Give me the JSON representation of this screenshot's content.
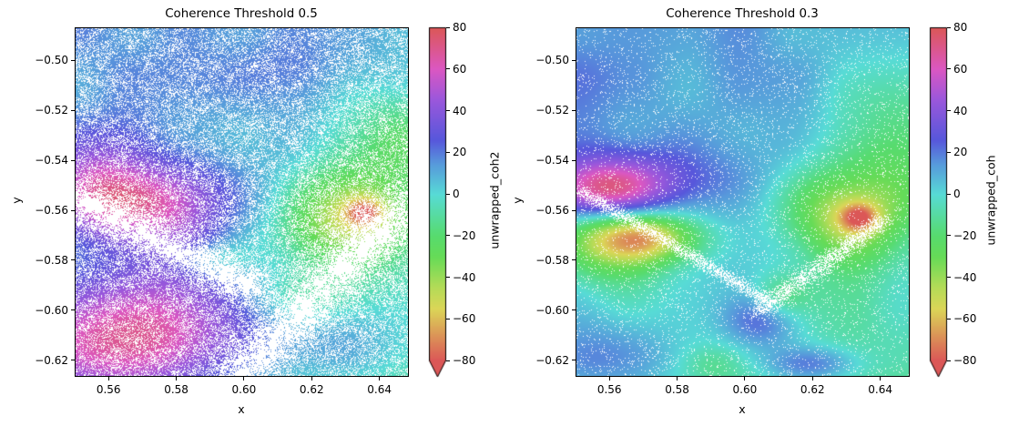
{
  "chart_data": [
    {
      "type": "heatmap",
      "title": "Coherence Threshold 0.5",
      "xlabel": "x",
      "ylabel": "y",
      "colorbar_label": "unwrapped_coh2",
      "xlim": [
        0.55,
        0.6487
      ],
      "ylim": [
        -0.6267,
        -0.4867
      ],
      "xticks": [
        "0.56",
        "0.58",
        "0.60",
        "0.62",
        "0.64"
      ],
      "xtick_values": [
        0.56,
        0.58,
        0.6,
        0.62,
        0.64
      ],
      "yticks": [
        "−0.50",
        "−0.52",
        "−0.54",
        "−0.56",
        "−0.58",
        "−0.60",
        "−0.62"
      ],
      "ytick_values": [
        -0.5,
        -0.52,
        -0.54,
        -0.56,
        -0.58,
        -0.6,
        -0.62
      ],
      "clim": [
        -80,
        80
      ],
      "cbticks": [
        "80",
        "60",
        "40",
        "20",
        "0",
        "−20",
        "−40",
        "−60",
        "−80"
      ],
      "cbtick_values": [
        80,
        60,
        40,
        20,
        0,
        -20,
        -40,
        -60,
        -80
      ],
      "colorbar_extend": "min",
      "base_value": 5,
      "mask_fraction": 0.28,
      "features": [
        {
          "x": 0.568,
          "y": -0.557,
          "value": 55,
          "sx": 0.018,
          "sy": 0.012
        },
        {
          "x": 0.56,
          "y": -0.615,
          "value": 55,
          "sx": 0.025,
          "sy": 0.018
        },
        {
          "x": 0.58,
          "y": -0.598,
          "value": 30,
          "sx": 0.02,
          "sy": 0.02
        },
        {
          "x": 0.555,
          "y": -0.545,
          "value": 20,
          "sx": 0.01,
          "sy": 0.012
        },
        {
          "x": 0.63,
          "y": -0.563,
          "value": -45,
          "sx": 0.013,
          "sy": 0.013
        },
        {
          "x": 0.636,
          "y": -0.561,
          "value": -40,
          "sx": 0.004,
          "sy": 0.004
        },
        {
          "x": 0.645,
          "y": -0.535,
          "value": -20,
          "sx": 0.015,
          "sy": 0.02
        },
        {
          "x": 0.59,
          "y": -0.58,
          "value": -20,
          "sx": 0.008,
          "sy": 0.005
        },
        {
          "x": 0.615,
          "y": -0.595,
          "value": -15,
          "sx": 0.012,
          "sy": 0.008
        },
        {
          "x": 0.63,
          "y": -0.615,
          "value": 15,
          "sx": 0.02,
          "sy": 0.012
        },
        {
          "x": 0.62,
          "y": -0.505,
          "value": 8,
          "sx": 0.02,
          "sy": 0.01
        }
      ],
      "mask_bands": [
        {
          "x1": 0.552,
          "y1": -0.556,
          "x2": 0.6,
          "y2": -0.59,
          "width": 0.005
        },
        {
          "x1": 0.6,
          "y1": -0.625,
          "x2": 0.645,
          "y2": -0.562,
          "width": 0.006
        }
      ]
    },
    {
      "type": "heatmap",
      "title": "Coherence Threshold 0.3",
      "xlabel": "x",
      "ylabel": "y",
      "colorbar_label": "unwrapped_coh",
      "xlim": [
        0.55,
        0.6487
      ],
      "ylim": [
        -0.6267,
        -0.4867
      ],
      "xticks": [
        "0.56",
        "0.58",
        "0.60",
        "0.62",
        "0.64"
      ],
      "xtick_values": [
        0.56,
        0.58,
        0.6,
        0.62,
        0.64
      ],
      "yticks": [
        "−0.50",
        "−0.52",
        "−0.54",
        "−0.56",
        "−0.58",
        "−0.60",
        "−0.62"
      ],
      "ytick_values": [
        -0.5,
        -0.52,
        -0.54,
        -0.56,
        -0.58,
        -0.6,
        -0.62
      ],
      "clim": [
        -80,
        80
      ],
      "cbticks": [
        "80",
        "60",
        "40",
        "20",
        "0",
        "−20",
        "−40",
        "−60",
        "−80"
      ],
      "cbtick_values": [
        80,
        60,
        40,
        20,
        0,
        -20,
        -40,
        -60,
        -80
      ],
      "colorbar_extend": "min",
      "base_value": 5,
      "mask_fraction": 0.05,
      "features": [
        {
          "x": 0.558,
          "y": -0.552,
          "value": 50,
          "sx": 0.012,
          "sy": 0.008
        },
        {
          "x": 0.57,
          "y": -0.548,
          "value": 25,
          "sx": 0.02,
          "sy": 0.01
        },
        {
          "x": 0.57,
          "y": -0.571,
          "value": -55,
          "sx": 0.012,
          "sy": 0.007
        },
        {
          "x": 0.56,
          "y": -0.575,
          "value": -30,
          "sx": 0.012,
          "sy": 0.012
        },
        {
          "x": 0.63,
          "y": -0.563,
          "value": -45,
          "sx": 0.012,
          "sy": 0.013
        },
        {
          "x": 0.634,
          "y": -0.563,
          "value": -40,
          "sx": 0.004,
          "sy": 0.004
        },
        {
          "x": 0.645,
          "y": -0.535,
          "value": -20,
          "sx": 0.015,
          "sy": 0.02
        },
        {
          "x": 0.605,
          "y": -0.605,
          "value": 25,
          "sx": 0.008,
          "sy": 0.008
        },
        {
          "x": 0.62,
          "y": -0.622,
          "value": 25,
          "sx": 0.01,
          "sy": 0.005
        },
        {
          "x": 0.61,
          "y": -0.595,
          "value": -15,
          "sx": 0.006,
          "sy": 0.006
        },
        {
          "x": 0.59,
          "y": -0.622,
          "value": -10,
          "sx": 0.006,
          "sy": 0.005
        },
        {
          "x": 0.56,
          "y": -0.62,
          "value": 15,
          "sx": 0.015,
          "sy": 0.01
        }
      ],
      "mask_bands": [
        {
          "x1": 0.552,
          "y1": -0.553,
          "x2": 0.605,
          "y2": -0.595,
          "width": 0.0015
        },
        {
          "x1": 0.605,
          "y1": -0.6,
          "x2": 0.64,
          "y2": -0.565,
          "width": 0.002
        }
      ]
    }
  ],
  "colormap": {
    "name": "hls",
    "stops": [
      {
        "value": 80,
        "color": "#db5757"
      },
      {
        "value": 60,
        "color": "#db57c2"
      },
      {
        "value": 46,
        "color": "#9d57db"
      },
      {
        "value": 26,
        "color": "#5757db"
      },
      {
        "value": 15,
        "color": "#5797db"
      },
      {
        "value": 0,
        "color": "#57dbd6"
      },
      {
        "value": -20,
        "color": "#57db6e"
      },
      {
        "value": -30,
        "color": "#66db57"
      },
      {
        "value": -45,
        "color": "#b5db57"
      },
      {
        "value": -55,
        "color": "#dbd657"
      },
      {
        "value": -80,
        "color": "#db5757"
      }
    ]
  }
}
